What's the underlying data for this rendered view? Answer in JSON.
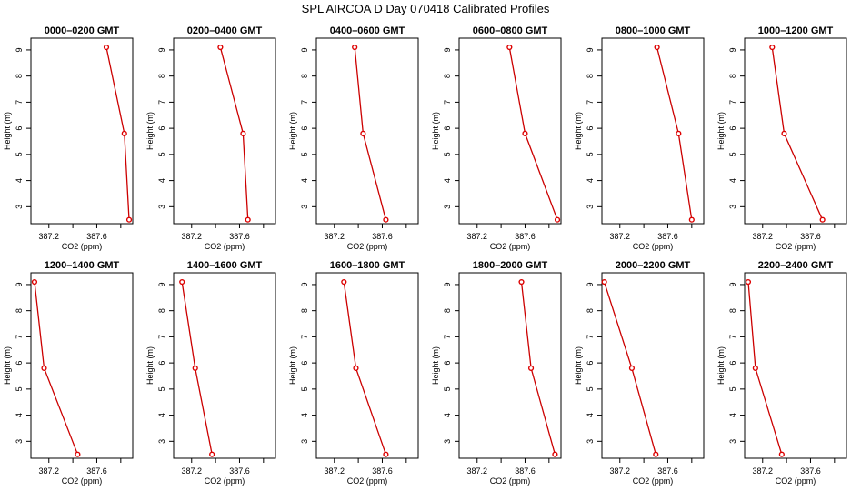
{
  "title": "SPL AIRCOA D  Day 070418  Calibrated Profiles",
  "chart_data": {
    "type": "line",
    "title": "SPL AIRCOA D  Day 070418  Calibrated Profiles",
    "xlabel": "CO2 (ppm)",
    "ylabel": "Height (m)",
    "xlim": [
      387.05,
      387.9
    ],
    "ylim": [
      2.35,
      9.45
    ],
    "xticks": [
      387.2,
      387.6
    ],
    "xtick_labels": [
      "387.2",
      "387.6"
    ],
    "yticks": [
      3,
      4,
      5,
      6,
      7,
      8,
      9
    ],
    "grid": false,
    "panels": [
      {
        "title": "0000–0200 GMT",
        "x": [
          387.68,
          387.83,
          387.87
        ],
        "y": [
          9.1,
          5.8,
          2.5
        ]
      },
      {
        "title": "0200–0400 GMT",
        "x": [
          387.44,
          387.63,
          387.67
        ],
        "y": [
          9.1,
          5.8,
          2.5
        ]
      },
      {
        "title": "0400–0600 GMT",
        "x": [
          387.37,
          387.44,
          387.63
        ],
        "y": [
          9.1,
          5.8,
          2.5
        ]
      },
      {
        "title": "0600–0800 GMT",
        "x": [
          387.47,
          387.6,
          387.87
        ],
        "y": [
          9.1,
          5.8,
          2.5
        ]
      },
      {
        "title": "0800–1000 GMT",
        "x": [
          387.51,
          387.69,
          387.8
        ],
        "y": [
          9.1,
          5.8,
          2.5
        ]
      },
      {
        "title": "1000–1200 GMT",
        "x": [
          387.28,
          387.38,
          387.7
        ],
        "y": [
          9.1,
          5.8,
          2.5
        ]
      },
      {
        "title": "1200–1400 GMT",
        "x": [
          387.08,
          387.16,
          387.44
        ],
        "y": [
          9.1,
          5.8,
          2.5
        ]
      },
      {
        "title": "1400–1600 GMT",
        "x": [
          387.12,
          387.23,
          387.37
        ],
        "y": [
          9.1,
          5.8,
          2.5
        ]
      },
      {
        "title": "1600–1800 GMT",
        "x": [
          387.28,
          387.38,
          387.63
        ],
        "y": [
          9.1,
          5.8,
          2.5
        ]
      },
      {
        "title": "1800–2000 GMT",
        "x": [
          387.57,
          387.65,
          387.85
        ],
        "y": [
          9.1,
          5.8,
          2.5
        ]
      },
      {
        "title": "2000–2200 GMT",
        "x": [
          387.07,
          387.3,
          387.5
        ],
        "y": [
          9.1,
          5.8,
          2.5
        ]
      },
      {
        "title": "2200–2400 GMT",
        "x": [
          387.08,
          387.14,
          387.36
        ],
        "y": [
          9.1,
          5.8,
          2.5
        ]
      }
    ]
  }
}
